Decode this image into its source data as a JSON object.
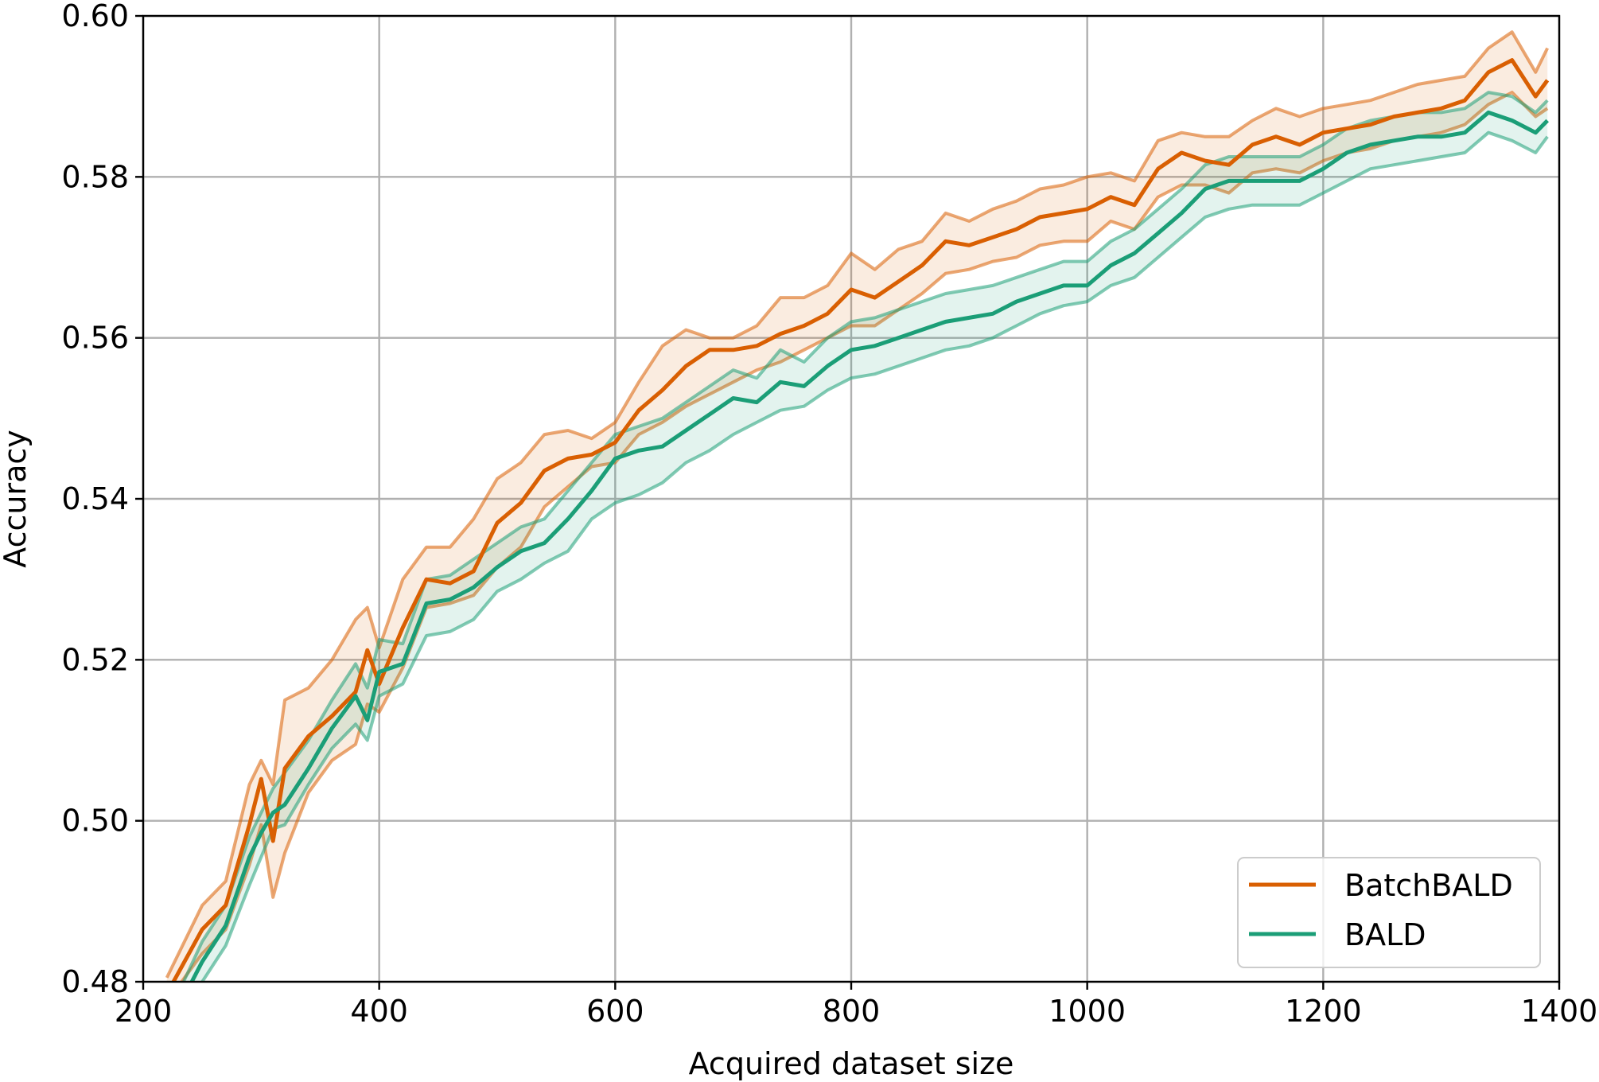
{
  "chart_data": {
    "type": "line",
    "title": "",
    "xlabel": "Acquired dataset size",
    "ylabel": "Accuracy",
    "xlim": [
      200,
      1400
    ],
    "ylim": [
      0.48,
      0.6
    ],
    "xticks": [
      200,
      400,
      600,
      800,
      1000,
      1200,
      1400
    ],
    "xtick_labels": [
      "200",
      "400",
      "600",
      "800",
      "1000",
      "1200",
      "1400"
    ],
    "yticks": [
      0.48,
      0.5,
      0.52,
      0.54,
      0.56,
      0.58,
      0.6
    ],
    "ytick_labels": [
      "0.48",
      "0.50",
      "0.52",
      "0.54",
      "0.56",
      "0.58",
      "0.60"
    ],
    "grid": true,
    "legend_position": "bottom-right",
    "series": [
      {
        "name": "BatchBALD",
        "color": "#d95f02",
        "x": [
          220,
          250,
          270,
          290,
          300,
          310,
          320,
          340,
          360,
          380,
          390,
          400,
          420,
          440,
          460,
          480,
          500,
          520,
          540,
          560,
          580,
          600,
          620,
          640,
          660,
          680,
          700,
          720,
          740,
          760,
          780,
          800,
          820,
          840,
          860,
          880,
          900,
          920,
          940,
          960,
          980,
          1000,
          1020,
          1040,
          1060,
          1080,
          1100,
          1120,
          1140,
          1160,
          1180,
          1200,
          1220,
          1240,
          1260,
          1280,
          1300,
          1320,
          1340,
          1360,
          1380,
          1390
        ],
        "values": [
          0.4785,
          0.4865,
          0.4895,
          0.4995,
          0.5052,
          0.4975,
          0.5065,
          0.5105,
          0.513,
          0.516,
          0.5212,
          0.517,
          0.524,
          0.53,
          0.5295,
          0.531,
          0.537,
          0.5395,
          0.5435,
          0.545,
          0.5455,
          0.547,
          0.551,
          0.5535,
          0.5565,
          0.5585,
          0.5585,
          0.559,
          0.5605,
          0.5615,
          0.563,
          0.566,
          0.565,
          0.567,
          0.569,
          0.572,
          0.5715,
          0.5725,
          0.5735,
          0.575,
          0.5755,
          0.576,
          0.5775,
          0.5765,
          0.581,
          0.583,
          0.582,
          0.5815,
          0.584,
          0.585,
          0.584,
          0.5855,
          0.586,
          0.5865,
          0.5875,
          0.588,
          0.5885,
          0.5895,
          0.593,
          0.5945,
          0.59,
          0.592
        ]
      },
      {
        "name": "BALD",
        "color": "#1b9e77",
        "x": [
          220,
          250,
          270,
          290,
          300,
          310,
          320,
          340,
          360,
          380,
          390,
          400,
          420,
          440,
          460,
          480,
          500,
          520,
          540,
          560,
          580,
          600,
          620,
          640,
          660,
          680,
          700,
          720,
          740,
          760,
          780,
          800,
          820,
          840,
          860,
          880,
          900,
          920,
          940,
          960,
          980,
          1000,
          1020,
          1040,
          1060,
          1080,
          1100,
          1120,
          1140,
          1160,
          1180,
          1200,
          1220,
          1240,
          1260,
          1280,
          1300,
          1320,
          1340,
          1360,
          1380,
          1390
        ],
        "values": [
          0.474,
          0.4825,
          0.487,
          0.4955,
          0.4985,
          0.501,
          0.502,
          0.5065,
          0.5115,
          0.5155,
          0.5125,
          0.5185,
          0.5195,
          0.527,
          0.5275,
          0.529,
          0.5315,
          0.5335,
          0.5345,
          0.5375,
          0.541,
          0.545,
          0.546,
          0.5465,
          0.5485,
          0.5505,
          0.5525,
          0.552,
          0.5545,
          0.554,
          0.5565,
          0.5585,
          0.559,
          0.56,
          0.561,
          0.562,
          0.5625,
          0.563,
          0.5645,
          0.5655,
          0.5665,
          0.5665,
          0.569,
          0.5705,
          0.573,
          0.5755,
          0.5785,
          0.5795,
          0.5795,
          0.5795,
          0.5795,
          0.581,
          0.583,
          0.584,
          0.5845,
          0.585,
          0.585,
          0.5855,
          0.588,
          0.587,
          0.5855,
          0.587
        ]
      }
    ],
    "bands": [
      {
        "series": "BatchBALD",
        "lower": [
          0.4775,
          0.4835,
          0.4865,
          0.4945,
          0.4995,
          0.4905,
          0.496,
          0.5035,
          0.5075,
          0.5095,
          0.5145,
          0.5135,
          0.519,
          0.5265,
          0.527,
          0.528,
          0.5315,
          0.534,
          0.539,
          0.5415,
          0.544,
          0.5445,
          0.548,
          0.5495,
          0.5515,
          0.553,
          0.5545,
          0.556,
          0.557,
          0.5585,
          0.56,
          0.5615,
          0.5615,
          0.5635,
          0.5655,
          0.568,
          0.5685,
          0.5695,
          0.57,
          0.5715,
          0.572,
          0.572,
          0.5745,
          0.5735,
          0.5775,
          0.579,
          0.579,
          0.578,
          0.5805,
          0.581,
          0.5805,
          0.582,
          0.583,
          0.5835,
          0.5845,
          0.585,
          0.5855,
          0.5865,
          0.589,
          0.5905,
          0.5875,
          0.5885
        ]
      },
      {
        "series": "BatchBALD",
        "upper": [
          0.4805,
          0.4895,
          0.4925,
          0.5045,
          0.5075,
          0.5045,
          0.515,
          0.5165,
          0.52,
          0.525,
          0.5265,
          0.5215,
          0.53,
          0.534,
          0.534,
          0.5375,
          0.5425,
          0.5445,
          0.548,
          0.5485,
          0.5475,
          0.5495,
          0.5545,
          0.559,
          0.561,
          0.56,
          0.56,
          0.5615,
          0.565,
          0.565,
          0.5665,
          0.5705,
          0.5685,
          0.571,
          0.572,
          0.5755,
          0.5745,
          0.576,
          0.577,
          0.5785,
          0.579,
          0.58,
          0.5805,
          0.5795,
          0.5845,
          0.5855,
          0.585,
          0.585,
          0.587,
          0.5885,
          0.5875,
          0.5885,
          0.589,
          0.5895,
          0.5905,
          0.5915,
          0.592,
          0.5925,
          0.596,
          0.598,
          0.593,
          0.596
        ]
      },
      {
        "series": "BALD",
        "lower": [
          0.472,
          0.48,
          0.4845,
          0.492,
          0.4955,
          0.499,
          0.4995,
          0.5045,
          0.509,
          0.512,
          0.51,
          0.5155,
          0.517,
          0.523,
          0.5235,
          0.525,
          0.5285,
          0.53,
          0.532,
          0.5335,
          0.5375,
          0.5395,
          0.5405,
          0.542,
          0.5445,
          0.546,
          0.548,
          0.5495,
          0.551,
          0.5515,
          0.5535,
          0.555,
          0.5555,
          0.5565,
          0.5575,
          0.5585,
          0.559,
          0.56,
          0.5615,
          0.563,
          0.564,
          0.5645,
          0.5665,
          0.5675,
          0.57,
          0.5725,
          0.575,
          0.576,
          0.5765,
          0.5765,
          0.5765,
          0.578,
          0.5795,
          0.581,
          0.5815,
          0.582,
          0.5825,
          0.583,
          0.5855,
          0.5845,
          0.583,
          0.585
        ]
      },
      {
        "series": "BALD",
        "upper": [
          0.4755,
          0.485,
          0.4895,
          0.498,
          0.501,
          0.504,
          0.506,
          0.51,
          0.515,
          0.5195,
          0.5165,
          0.5225,
          0.522,
          0.53,
          0.5305,
          0.5325,
          0.5345,
          0.5365,
          0.5375,
          0.541,
          0.5445,
          0.548,
          0.549,
          0.55,
          0.552,
          0.554,
          0.556,
          0.555,
          0.5585,
          0.557,
          0.56,
          0.562,
          0.5625,
          0.5635,
          0.5645,
          0.5655,
          0.566,
          0.5665,
          0.5675,
          0.5685,
          0.5695,
          0.5695,
          0.572,
          0.5735,
          0.576,
          0.5785,
          0.5815,
          0.5825,
          0.5825,
          0.5825,
          0.5825,
          0.584,
          0.586,
          0.587,
          0.5875,
          0.588,
          0.588,
          0.5885,
          0.5905,
          0.59,
          0.588,
          0.5895
        ]
      }
    ]
  }
}
